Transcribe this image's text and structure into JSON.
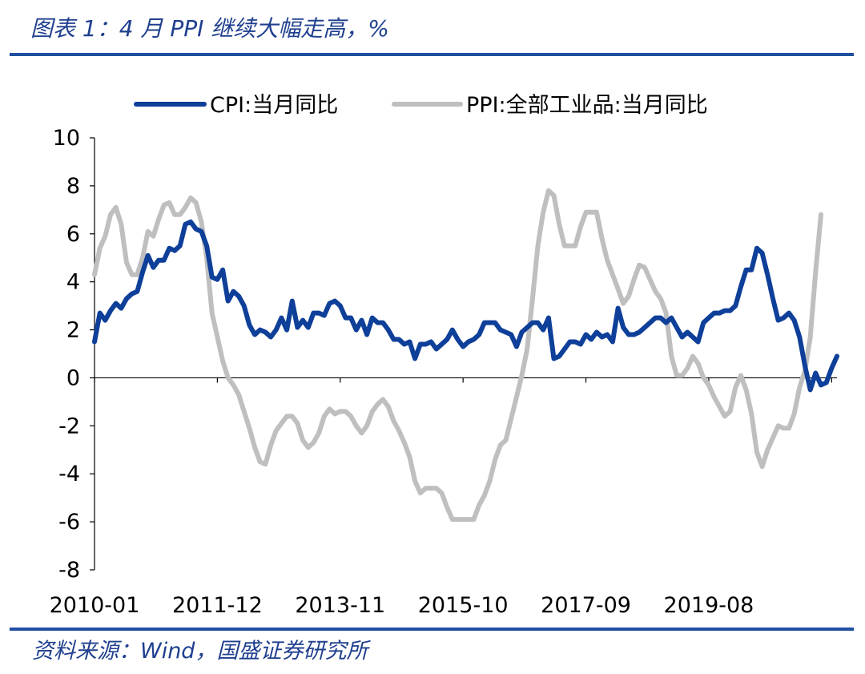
{
  "header": {
    "title": "图表 1：4 月 PPI 继续大幅走高，%"
  },
  "footer": {
    "source": "资料来源：Wind，国盛证券研究所"
  },
  "chart_data": {
    "type": "line",
    "title": "图表 1：4 月 PPI 继续大幅走高，%",
    "xlabel": "",
    "ylabel": "",
    "ylim": [
      -8,
      10
    ],
    "yticks": [
      "10",
      "8",
      "6",
      "4",
      "2",
      "0",
      "-2",
      "-4",
      "-6",
      "-8"
    ],
    "xtick_labels": [
      "2010-01",
      "2011-12",
      "2013-11",
      "2015-10",
      "2017-09",
      "2019-08"
    ],
    "x_start": "2010-01",
    "x_end": "2021-04",
    "grid": false,
    "legend": "top",
    "series": [
      {
        "name": "CPI:当月同比",
        "color": "#0e3f99",
        "values": [
          1.5,
          2.7,
          2.4,
          2.8,
          3.1,
          2.9,
          3.3,
          3.5,
          3.6,
          4.4,
          5.1,
          4.6,
          4.9,
          4.9,
          5.4,
          5.3,
          5.5,
          6.4,
          6.5,
          6.2,
          6.1,
          5.5,
          4.2,
          4.1,
          4.5,
          3.2,
          3.6,
          3.4,
          3.0,
          2.2,
          1.8,
          2.0,
          1.9,
          1.7,
          2.0,
          2.5,
          2.0,
          3.2,
          2.1,
          2.4,
          2.1,
          2.7,
          2.7,
          2.6,
          3.1,
          3.2,
          3.0,
          2.5,
          2.5,
          2.0,
          2.4,
          1.8,
          2.5,
          2.3,
          2.3,
          2.0,
          1.6,
          1.6,
          1.4,
          1.5,
          0.8,
          1.4,
          1.4,
          1.5,
          1.2,
          1.4,
          1.6,
          2.0,
          1.6,
          1.3,
          1.5,
          1.6,
          1.8,
          2.3,
          2.3,
          2.3,
          2.0,
          1.9,
          1.8,
          1.3,
          1.9,
          2.1,
          2.3,
          2.3,
          2.0,
          2.5,
          0.8,
          0.9,
          1.2,
          1.5,
          1.5,
          1.4,
          1.8,
          1.6,
          1.9,
          1.7,
          1.8,
          1.5,
          2.9,
          2.1,
          1.8,
          1.8,
          1.9,
          2.1,
          2.3,
          2.5,
          2.5,
          2.3,
          2.5,
          2.1,
          1.7,
          1.9,
          1.7,
          1.5,
          2.3,
          2.5,
          2.7,
          2.7,
          2.8,
          2.8,
          3.0,
          3.8,
          4.5,
          4.5,
          5.4,
          5.2,
          4.3,
          3.3,
          2.4,
          2.5,
          2.7,
          2.4,
          1.7,
          0.5,
          -0.5,
          0.2,
          -0.3,
          -0.2,
          0.4,
          0.9
        ]
      },
      {
        "name": "PPI:全部工业品:当月同比",
        "color": "#bfbfbf",
        "values": [
          4.3,
          5.4,
          5.9,
          6.8,
          7.1,
          6.4,
          4.8,
          4.3,
          4.3,
          5.0,
          6.1,
          5.9,
          6.6,
          7.2,
          7.3,
          6.8,
          6.8,
          7.1,
          7.5,
          7.3,
          6.5,
          5.0,
          2.7,
          1.7,
          0.7,
          0.0,
          -0.3,
          -0.7,
          -1.4,
          -2.1,
          -2.9,
          -3.5,
          -3.6,
          -2.8,
          -2.2,
          -1.9,
          -1.6,
          -1.6,
          -1.9,
          -2.6,
          -2.9,
          -2.7,
          -2.3,
          -1.6,
          -1.3,
          -1.5,
          -1.4,
          -1.4,
          -1.6,
          -2.0,
          -2.3,
          -2.0,
          -1.4,
          -1.1,
          -0.9,
          -1.2,
          -1.8,
          -2.2,
          -2.7,
          -3.3,
          -4.3,
          -4.8,
          -4.6,
          -4.6,
          -4.6,
          -4.8,
          -5.4,
          -5.9,
          -5.9,
          -5.9,
          -5.9,
          -5.9,
          -5.3,
          -4.9,
          -4.3,
          -3.4,
          -2.8,
          -2.6,
          -1.7,
          -0.8,
          0.1,
          1.2,
          3.3,
          5.5,
          6.9,
          7.8,
          7.6,
          6.4,
          5.5,
          5.5,
          5.5,
          6.3,
          6.9,
          6.9,
          6.9,
          5.8,
          4.9,
          4.3,
          3.7,
          3.1,
          3.4,
          4.1,
          4.7,
          4.6,
          4.1,
          3.6,
          3.3,
          2.7,
          0.9,
          0.1,
          0.1,
          0.4,
          0.9,
          0.6,
          0.0,
          -0.3,
          -0.8,
          -1.2,
          -1.6,
          -1.4,
          -0.4,
          0.1,
          -0.5,
          -1.5,
          -3.1,
          -3.7,
          -3.0,
          -2.5,
          -2.0,
          -2.1,
          -2.1,
          -1.5,
          -0.4,
          0.3,
          1.7,
          4.4,
          6.8
        ]
      }
    ]
  }
}
